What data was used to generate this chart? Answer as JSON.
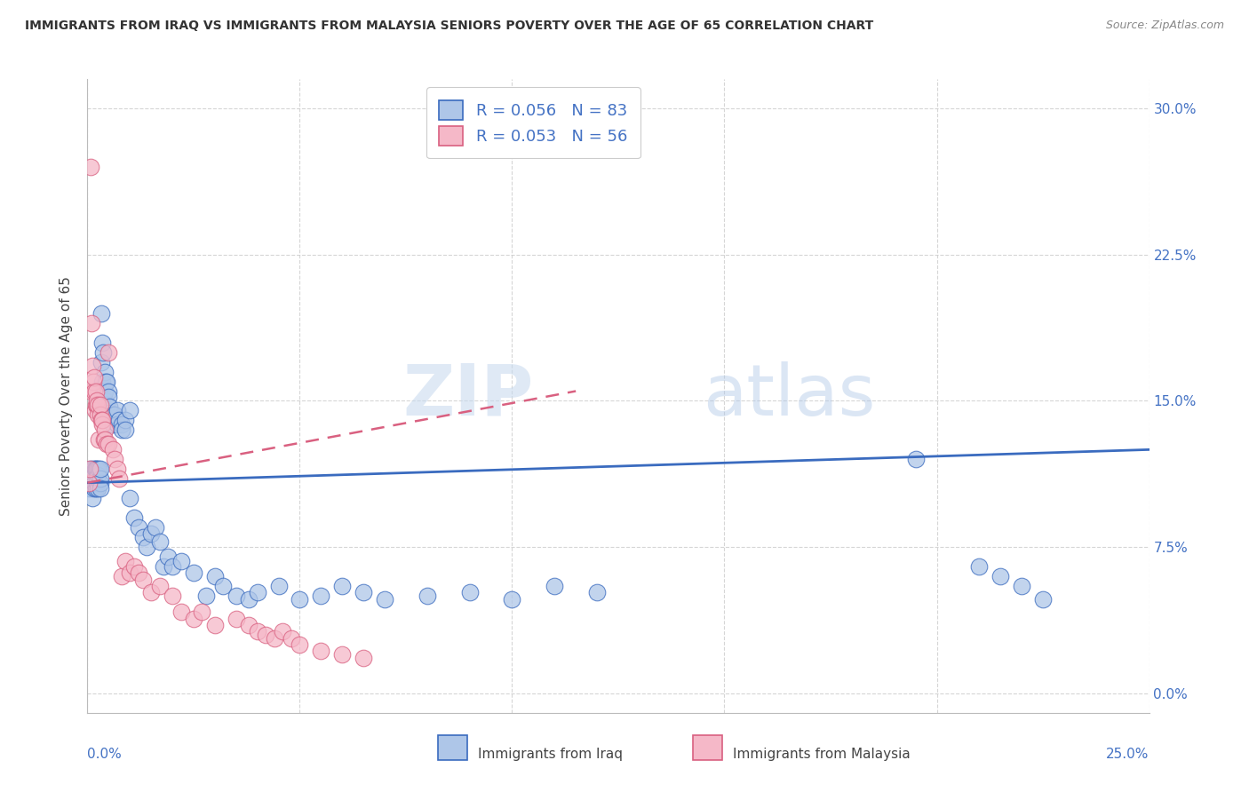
{
  "title": "IMMIGRANTS FROM IRAQ VS IMMIGRANTS FROM MALAYSIA SENIORS POVERTY OVER THE AGE OF 65 CORRELATION CHART",
  "source": "Source: ZipAtlas.com",
  "ylabel_left": "Seniors Poverty Over the Age of 65",
  "legend_iraq": {
    "R": 0.056,
    "N": 83,
    "color": "#aec6e8",
    "line_color": "#3a6bbf"
  },
  "legend_malaysia": {
    "R": 0.053,
    "N": 56,
    "color": "#f5b8c8",
    "line_color": "#d96080"
  },
  "watermark_1": "ZIP",
  "watermark_2": "atlas",
  "xlim": [
    0.0,
    0.25
  ],
  "ylim": [
    -0.01,
    0.315
  ],
  "yticks": [
    0.0,
    0.075,
    0.15,
    0.225,
    0.3
  ],
  "xticks": [
    0.0,
    0.05,
    0.1,
    0.15,
    0.2,
    0.25
  ],
  "iraq_x": [
    0.0005,
    0.0008,
    0.001,
    0.001,
    0.0012,
    0.0013,
    0.0015,
    0.0015,
    0.0016,
    0.0018,
    0.002,
    0.002,
    0.0022,
    0.0022,
    0.0023,
    0.0025,
    0.0025,
    0.0027,
    0.003,
    0.003,
    0.003,
    0.003,
    0.0032,
    0.0033,
    0.0035,
    0.0035,
    0.0037,
    0.0038,
    0.004,
    0.004,
    0.0042,
    0.0043,
    0.0045,
    0.0045,
    0.005,
    0.005,
    0.0052,
    0.006,
    0.006,
    0.0065,
    0.007,
    0.007,
    0.0075,
    0.008,
    0.008,
    0.009,
    0.009,
    0.01,
    0.01,
    0.011,
    0.012,
    0.013,
    0.014,
    0.015,
    0.016,
    0.017,
    0.018,
    0.019,
    0.02,
    0.022,
    0.025,
    0.028,
    0.03,
    0.032,
    0.035,
    0.038,
    0.04,
    0.045,
    0.05,
    0.055,
    0.06,
    0.065,
    0.07,
    0.08,
    0.09,
    0.1,
    0.11,
    0.12,
    0.195,
    0.21,
    0.215,
    0.22,
    0.225
  ],
  "iraq_y": [
    0.105,
    0.115,
    0.108,
    0.112,
    0.1,
    0.115,
    0.105,
    0.112,
    0.108,
    0.115,
    0.105,
    0.115,
    0.108,
    0.11,
    0.115,
    0.105,
    0.112,
    0.115,
    0.108,
    0.11,
    0.115,
    0.105,
    0.195,
    0.17,
    0.18,
    0.16,
    0.175,
    0.155,
    0.165,
    0.15,
    0.155,
    0.16,
    0.148,
    0.16,
    0.155,
    0.152,
    0.147,
    0.143,
    0.138,
    0.143,
    0.145,
    0.138,
    0.14,
    0.138,
    0.135,
    0.14,
    0.135,
    0.145,
    0.1,
    0.09,
    0.085,
    0.08,
    0.075,
    0.082,
    0.085,
    0.078,
    0.065,
    0.07,
    0.065,
    0.068,
    0.062,
    0.05,
    0.06,
    0.055,
    0.05,
    0.048,
    0.052,
    0.055,
    0.048,
    0.05,
    0.055,
    0.052,
    0.048,
    0.05,
    0.052,
    0.048,
    0.055,
    0.052,
    0.12,
    0.065,
    0.06,
    0.055,
    0.048
  ],
  "malaysia_x": [
    0.0003,
    0.0005,
    0.0008,
    0.001,
    0.001,
    0.0012,
    0.0013,
    0.0015,
    0.0016,
    0.0018,
    0.002,
    0.002,
    0.0022,
    0.0023,
    0.0025,
    0.0025,
    0.0027,
    0.003,
    0.003,
    0.0032,
    0.0035,
    0.0035,
    0.0038,
    0.004,
    0.0042,
    0.0045,
    0.005,
    0.005,
    0.006,
    0.0065,
    0.007,
    0.0075,
    0.008,
    0.009,
    0.01,
    0.011,
    0.012,
    0.013,
    0.015,
    0.017,
    0.02,
    0.022,
    0.025,
    0.027,
    0.03,
    0.035,
    0.038,
    0.04,
    0.042,
    0.044,
    0.046,
    0.048,
    0.05,
    0.055,
    0.06,
    0.065
  ],
  "malaysia_y": [
    0.108,
    0.115,
    0.27,
    0.19,
    0.155,
    0.168,
    0.16,
    0.155,
    0.162,
    0.145,
    0.155,
    0.148,
    0.148,
    0.15,
    0.143,
    0.148,
    0.13,
    0.143,
    0.148,
    0.14,
    0.138,
    0.14,
    0.13,
    0.135,
    0.13,
    0.128,
    0.128,
    0.175,
    0.125,
    0.12,
    0.115,
    0.11,
    0.06,
    0.068,
    0.062,
    0.065,
    0.062,
    0.058,
    0.052,
    0.055,
    0.05,
    0.042,
    0.038,
    0.042,
    0.035,
    0.038,
    0.035,
    0.032,
    0.03,
    0.028,
    0.032,
    0.028,
    0.025,
    0.022,
    0.02,
    0.018
  ],
  "iraq_trend": [
    0.0,
    0.25,
    0.108,
    0.125
  ],
  "malaysia_trend": [
    0.0,
    0.115,
    0.108,
    0.155
  ]
}
